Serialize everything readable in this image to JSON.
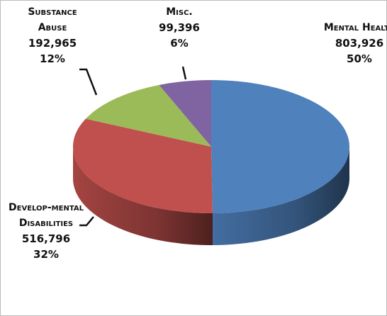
{
  "chart_data": {
    "type": "pie3d",
    "categories": [
      "Mental Health",
      "Develop-mental Disabilities",
      "Substance Abuse",
      "Misc."
    ],
    "values": [
      803926,
      516796,
      192965,
      99396
    ],
    "value_labels": [
      "803,926",
      "516,796",
      "192,965",
      "99,396"
    ],
    "percentages": [
      50,
      32,
      12,
      6
    ],
    "percentage_labels": [
      "50%",
      "32%",
      "12%",
      "6%"
    ],
    "colors": [
      "#4f81bd",
      "#c0504d",
      "#9bbb59",
      "#8064a2"
    ]
  }
}
